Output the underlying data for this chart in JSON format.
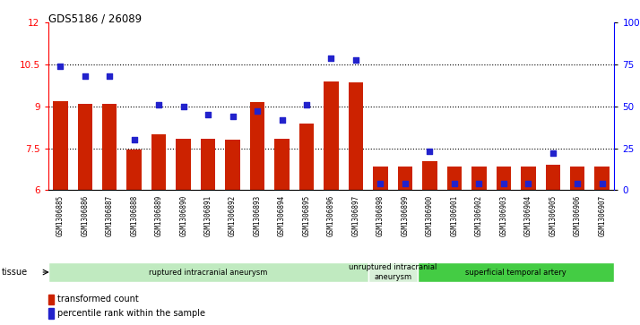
{
  "title": "GDS5186 / 26089",
  "samples": [
    "GSM1306885",
    "GSM1306886",
    "GSM1306887",
    "GSM1306888",
    "GSM1306889",
    "GSM1306890",
    "GSM1306891",
    "GSM1306892",
    "GSM1306893",
    "GSM1306894",
    "GSM1306895",
    "GSM1306896",
    "GSM1306897",
    "GSM1306898",
    "GSM1306899",
    "GSM1306900",
    "GSM1306901",
    "GSM1306902",
    "GSM1306903",
    "GSM1306904",
    "GSM1306905",
    "GSM1306906",
    "GSM1306907"
  ],
  "transformed_count": [
    9.2,
    9.1,
    9.1,
    7.45,
    8.0,
    7.85,
    7.85,
    7.8,
    9.15,
    7.85,
    8.4,
    9.9,
    9.85,
    6.85,
    6.85,
    7.05,
    6.85,
    6.85,
    6.85,
    6.85,
    6.9,
    6.85,
    6.85
  ],
  "percentile_rank": [
    74,
    68,
    68,
    30,
    51,
    50,
    45,
    44,
    47,
    42,
    51,
    79,
    78,
    4,
    4,
    23,
    4,
    4,
    4,
    4,
    22,
    4,
    4
  ],
  "ylim_left": [
    6,
    12
  ],
  "ylim_right": [
    0,
    100
  ],
  "yticks_left": [
    6,
    7.5,
    9,
    10.5,
    12
  ],
  "ytick_labels_left": [
    "6",
    "7.5",
    "9",
    "10.5",
    "12"
  ],
  "yticks_right": [
    0,
    25,
    50,
    75,
    100
  ],
  "ytick_labels_right": [
    "0",
    "25",
    "50",
    "75",
    "100%"
  ],
  "bar_color": "#cc2200",
  "dot_color": "#2222cc",
  "xticklabel_bg": "#d8d8d8",
  "tissue_groups": [
    {
      "label": "ruptured intracranial aneurysm",
      "start": 0,
      "end": 13,
      "color": "#c0eac0"
    },
    {
      "label": "unruptured intracranial\naneurysm",
      "start": 13,
      "end": 15,
      "color": "#d8f0d8"
    },
    {
      "label": "superficial temporal artery",
      "start": 15,
      "end": 23,
      "color": "#44cc44"
    }
  ],
  "legend_bar_label": "transformed count",
  "legend_dot_label": "percentile rank within the sample",
  "tissue_label": "tissue"
}
